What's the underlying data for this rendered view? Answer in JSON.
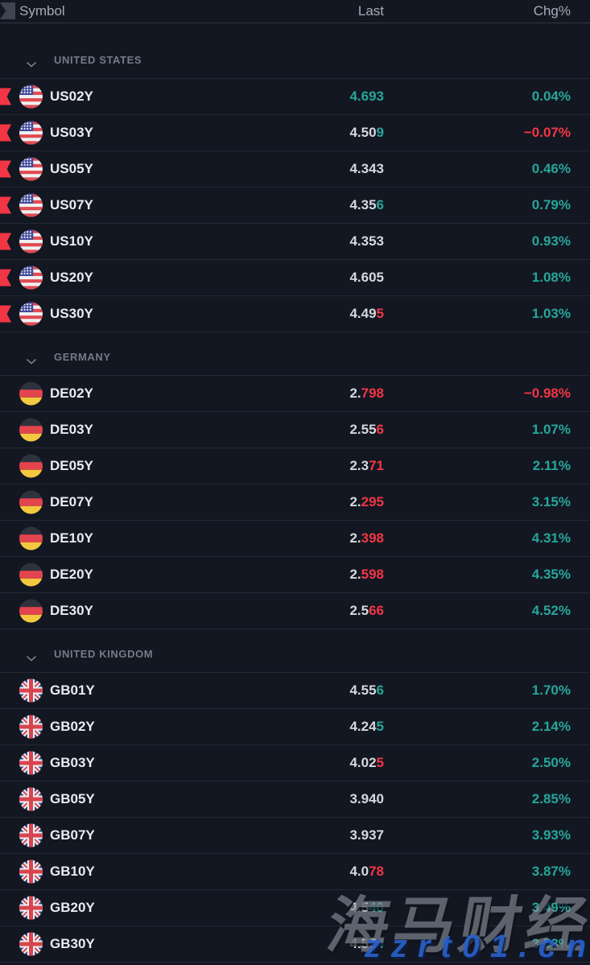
{
  "header": {
    "symbol": "Symbol",
    "last": "Last",
    "chg": "Chg%"
  },
  "colors": {
    "up": "#26a69a",
    "down": "#f23645",
    "neutral": "#d5d8de",
    "flag_marker": "#f23645",
    "watermark_url_blue": "#2962cc"
  },
  "icons": {
    "header_flag": "flag-column-icon",
    "section_chevron": "chevron-down-icon"
  },
  "watermark": {
    "title": "海马财经",
    "url": "zzrt01.cn"
  },
  "sections": [
    {
      "label": "UNITED STATES",
      "rows": [
        {
          "symbol": "US02Y",
          "flag_icon": "us-flag-icon",
          "flagged": true,
          "last_parts": [
            {
              "text": "4.693",
              "dir": "up"
            }
          ],
          "chg": {
            "text": "0.04%",
            "dir": "up"
          }
        },
        {
          "symbol": "US03Y",
          "flag_icon": "us-flag-icon",
          "flagged": true,
          "last_parts": [
            {
              "text": "4.50",
              "dir": "n"
            },
            {
              "text": "9",
              "dir": "up"
            }
          ],
          "chg": {
            "text": "−0.07%",
            "dir": "down"
          }
        },
        {
          "symbol": "US05Y",
          "flag_icon": "us-flag-icon",
          "flagged": true,
          "last_parts": [
            {
              "text": "4.343",
              "dir": "n"
            }
          ],
          "chg": {
            "text": "0.46%",
            "dir": "up"
          }
        },
        {
          "symbol": "US07Y",
          "flag_icon": "us-flag-icon",
          "flagged": true,
          "last_parts": [
            {
              "text": "4.35",
              "dir": "n"
            },
            {
              "text": "6",
              "dir": "up"
            }
          ],
          "chg": {
            "text": "0.79%",
            "dir": "up"
          }
        },
        {
          "symbol": "US10Y",
          "flag_icon": "us-flag-icon",
          "flagged": true,
          "last_parts": [
            {
              "text": "4.353",
              "dir": "n"
            }
          ],
          "chg": {
            "text": "0.93%",
            "dir": "up"
          }
        },
        {
          "symbol": "US20Y",
          "flag_icon": "us-flag-icon",
          "flagged": true,
          "last_parts": [
            {
              "text": "4.605",
              "dir": "n"
            }
          ],
          "chg": {
            "text": "1.08%",
            "dir": "up"
          }
        },
        {
          "symbol": "US30Y",
          "flag_icon": "us-flag-icon",
          "flagged": true,
          "last_parts": [
            {
              "text": "4.49",
              "dir": "n"
            },
            {
              "text": "5",
              "dir": "down"
            }
          ],
          "chg": {
            "text": "1.03%",
            "dir": "up"
          }
        }
      ]
    },
    {
      "label": "GERMANY",
      "rows": [
        {
          "symbol": "DE02Y",
          "flag_icon": "de-flag-icon",
          "flagged": false,
          "last_parts": [
            {
              "text": "2.",
              "dir": "n"
            },
            {
              "text": "798",
              "dir": "down"
            }
          ],
          "chg": {
            "text": "−0.98%",
            "dir": "down"
          }
        },
        {
          "symbol": "DE03Y",
          "flag_icon": "de-flag-icon",
          "flagged": false,
          "last_parts": [
            {
              "text": "2.55",
              "dir": "n"
            },
            {
              "text": "6",
              "dir": "down"
            }
          ],
          "chg": {
            "text": "1.07%",
            "dir": "up"
          }
        },
        {
          "symbol": "DE05Y",
          "flag_icon": "de-flag-icon",
          "flagged": false,
          "last_parts": [
            {
              "text": "2.3",
              "dir": "n"
            },
            {
              "text": "71",
              "dir": "down"
            }
          ],
          "chg": {
            "text": "2.11%",
            "dir": "up"
          }
        },
        {
          "symbol": "DE07Y",
          "flag_icon": "de-flag-icon",
          "flagged": false,
          "last_parts": [
            {
              "text": "2.",
              "dir": "n"
            },
            {
              "text": "295",
              "dir": "down"
            }
          ],
          "chg": {
            "text": "3.15%",
            "dir": "up"
          }
        },
        {
          "symbol": "DE10Y",
          "flag_icon": "de-flag-icon",
          "flagged": false,
          "last_parts": [
            {
              "text": "2.",
              "dir": "n"
            },
            {
              "text": "398",
              "dir": "down"
            }
          ],
          "chg": {
            "text": "4.31%",
            "dir": "up"
          }
        },
        {
          "symbol": "DE20Y",
          "flag_icon": "de-flag-icon",
          "flagged": false,
          "last_parts": [
            {
              "text": "2.",
              "dir": "n"
            },
            {
              "text": "598",
              "dir": "down"
            }
          ],
          "chg": {
            "text": "4.35%",
            "dir": "up"
          }
        },
        {
          "symbol": "DE30Y",
          "flag_icon": "de-flag-icon",
          "flagged": false,
          "last_parts": [
            {
              "text": "2.5",
              "dir": "n"
            },
            {
              "text": "66",
              "dir": "down"
            }
          ],
          "chg": {
            "text": "4.52%",
            "dir": "up"
          }
        }
      ]
    },
    {
      "label": "UNITED KINGDOM",
      "rows": [
        {
          "symbol": "GB01Y",
          "flag_icon": "gb-flag-icon",
          "flagged": false,
          "last_parts": [
            {
              "text": "4.55",
              "dir": "n"
            },
            {
              "text": "6",
              "dir": "up"
            }
          ],
          "chg": {
            "text": "1.70%",
            "dir": "up"
          }
        },
        {
          "symbol": "GB02Y",
          "flag_icon": "gb-flag-icon",
          "flagged": false,
          "last_parts": [
            {
              "text": "4.24",
              "dir": "n"
            },
            {
              "text": "5",
              "dir": "up"
            }
          ],
          "chg": {
            "text": "2.14%",
            "dir": "up"
          }
        },
        {
          "symbol": "GB03Y",
          "flag_icon": "gb-flag-icon",
          "flagged": false,
          "last_parts": [
            {
              "text": "4.02",
              "dir": "n"
            },
            {
              "text": "5",
              "dir": "down"
            }
          ],
          "chg": {
            "text": "2.50%",
            "dir": "up"
          }
        },
        {
          "symbol": "GB05Y",
          "flag_icon": "gb-flag-icon",
          "flagged": false,
          "last_parts": [
            {
              "text": "3.940",
              "dir": "n"
            }
          ],
          "chg": {
            "text": "2.85%",
            "dir": "up"
          }
        },
        {
          "symbol": "GB07Y",
          "flag_icon": "gb-flag-icon",
          "flagged": false,
          "last_parts": [
            {
              "text": "3.937",
              "dir": "n"
            }
          ],
          "chg": {
            "text": "3.93%",
            "dir": "up"
          }
        },
        {
          "symbol": "GB10Y",
          "flag_icon": "gb-flag-icon",
          "flagged": false,
          "last_parts": [
            {
              "text": "4.0",
              "dir": "n"
            },
            {
              "text": "78",
              "dir": "down"
            }
          ],
          "chg": {
            "text": "3.87%",
            "dir": "up"
          }
        },
        {
          "symbol": "GB20Y",
          "flag_icon": "gb-flag-icon",
          "flagged": false,
          "last_parts": [
            {
              "text": "4.5",
              "dir": "n"
            },
            {
              "text": "40",
              "dir": "up"
            }
          ],
          "chg": {
            "text": "3.49%",
            "dir": "up"
          }
        },
        {
          "symbol": "GB30Y",
          "flag_icon": "gb-flag-icon",
          "flagged": false,
          "last_parts": [
            {
              "text": "4.57",
              "dir": "n"
            },
            {
              "text": "4",
              "dir": "up"
            }
          ],
          "chg": {
            "text": "3.53%",
            "dir": "up"
          }
        }
      ]
    }
  ]
}
